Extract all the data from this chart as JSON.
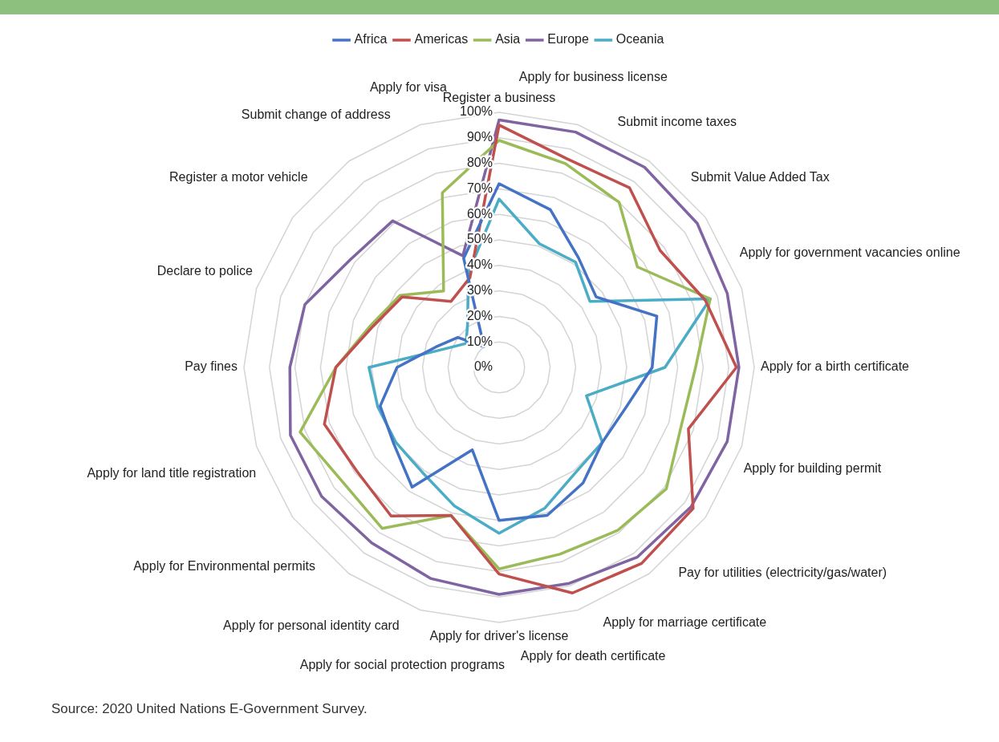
{
  "chart_data": {
    "type": "radar",
    "categories": [
      "Register a business",
      "Apply for business license",
      "Submit income taxes",
      "Submit Value Added Tax",
      "Apply for government vacancies online",
      "Apply for a birth certificate",
      "Apply for building permit",
      "Pay for utilities (electricity/gas/water)",
      "Apply for marriage certificate",
      "Apply for death certificate",
      "Apply for driver's license",
      "Apply for social protection programs",
      "Apply for personal identity card",
      "Apply for Environmental permits",
      "Apply for land title registration",
      "Pay fines",
      "Declare to police",
      "Register a motor vehicle",
      "Submit change of address",
      "Apply for visa"
    ],
    "series": [
      {
        "name": "Africa",
        "color": "#4472c4",
        "values": [
          72,
          65,
          53,
          47,
          65,
          60,
          52,
          50,
          56,
          61,
          60,
          34,
          58,
          51,
          49,
          40,
          26,
          20,
          10,
          45
        ]
      },
      {
        "name": "Americas",
        "color": "#c0504d",
        "values": [
          95,
          86,
          87,
          78,
          85,
          93,
          78,
          94,
          95,
          93,
          81,
          61,
          72,
          69,
          72,
          64,
          52,
          47,
          32,
          37
        ]
      },
      {
        "name": "Asia",
        "color": "#9bbb59",
        "values": [
          89,
          84,
          80,
          67,
          87,
          77,
          75,
          81,
          79,
          77,
          79,
          61,
          78,
          76,
          82,
          64,
          53,
          48,
          37,
          72
        ]
      },
      {
        "name": "Europe",
        "color": "#8064a2",
        "values": [
          97,
          97,
          97,
          96,
          94,
          94,
          94,
          93,
          92,
          89,
          89,
          87,
          85,
          86,
          86,
          82,
          80,
          72,
          71,
          46
        ]
      },
      {
        "name": "Oceania",
        "color": "#4bacc6",
        "values": [
          66,
          51,
          51,
          44,
          87,
          65,
          36,
          50,
          51,
          58,
          65,
          57,
          51,
          50,
          50,
          51,
          23,
          16,
          21,
          39
        ]
      }
    ],
    "ylim": [
      0,
      100
    ],
    "yticks": [
      {
        "value": 0,
        "label": "0%"
      },
      {
        "value": 10,
        "label": "10%"
      },
      {
        "value": 20,
        "label": "20%"
      },
      {
        "value": 30,
        "label": "30%"
      },
      {
        "value": 40,
        "label": "40%"
      },
      {
        "value": 50,
        "label": "50%"
      },
      {
        "value": 60,
        "label": "60%"
      },
      {
        "value": 70,
        "label": "70%"
      },
      {
        "value": 80,
        "label": "80%"
      },
      {
        "value": 90,
        "label": "90%"
      },
      {
        "value": 100,
        "label": "100%"
      }
    ],
    "grid": true,
    "legend": "top",
    "annotations": [
      "Source: 2020 United Nations E-Government Survey."
    ]
  }
}
